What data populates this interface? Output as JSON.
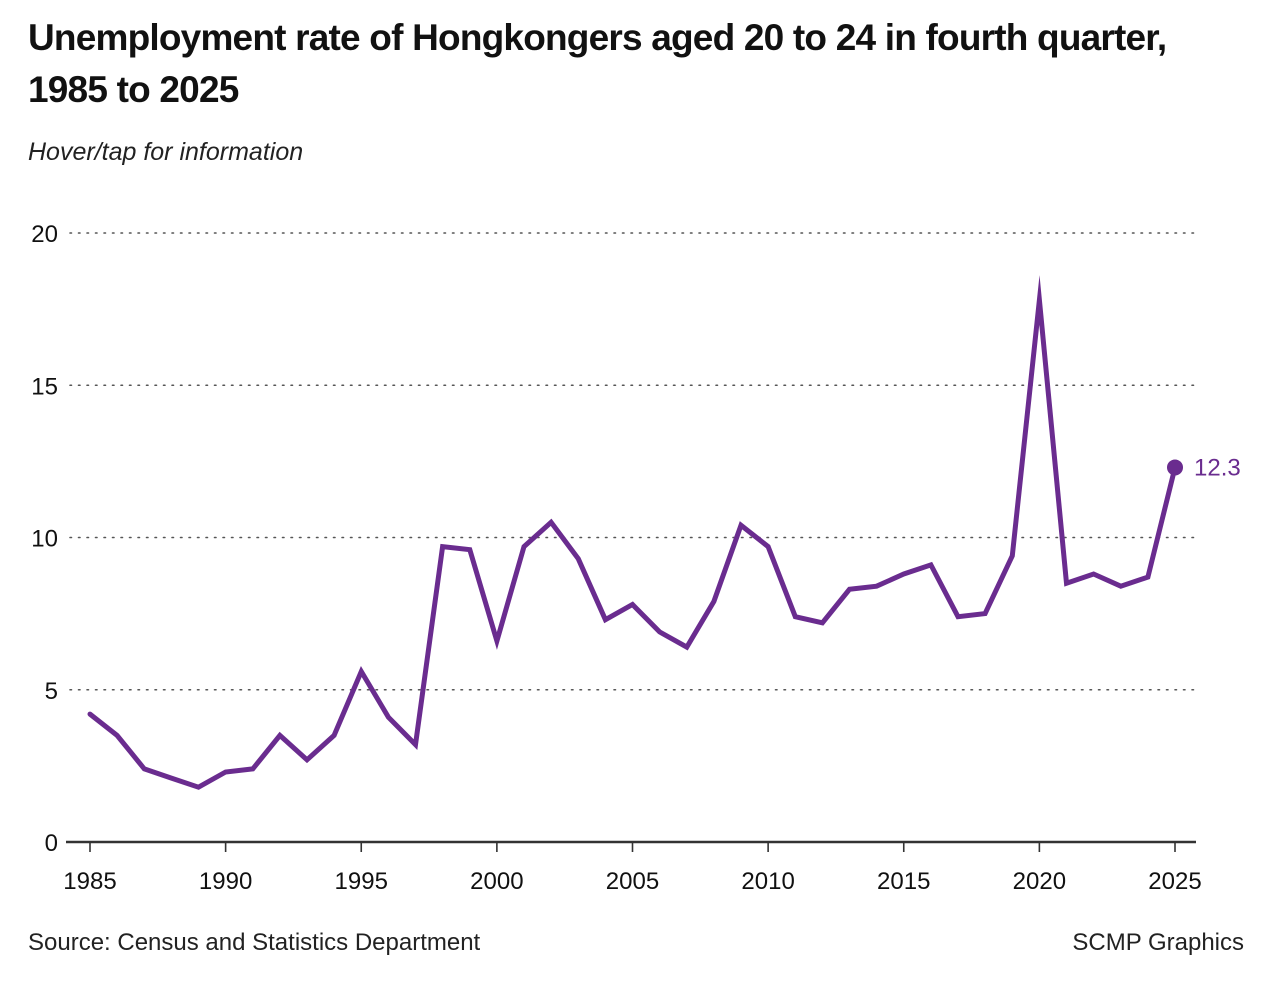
{
  "header": {
    "title": "Unemployment rate of Hongkongers aged 20 to 24 in fourth quarter, 1985 to 2025",
    "subtitle": "Hover/tap for information"
  },
  "footer": {
    "source": "Source: Census and Statistics Department",
    "credit": "SCMP Graphics"
  },
  "colors": {
    "line": "#6a2c8f",
    "grid": "#555555",
    "axis": "#333333"
  },
  "chart_data": {
    "type": "line",
    "title": "Unemployment rate of Hongkongers aged 20 to 24 in fourth quarter, 1985 to 2025",
    "xlabel": "",
    "ylabel": "",
    "xlim": [
      1985,
      2025
    ],
    "ylim": [
      0,
      20
    ],
    "grid": true,
    "x_ticks": [
      "1985",
      "1990",
      "1995",
      "2000",
      "2005",
      "2010",
      "2015",
      "2020",
      "2025"
    ],
    "x_tick_values": [
      1985,
      1990,
      1995,
      2000,
      2005,
      2010,
      2015,
      2020,
      2025
    ],
    "y_ticks": [
      "0",
      "5",
      "10",
      "15",
      "20"
    ],
    "y_tick_values": [
      0,
      5,
      10,
      15,
      20
    ],
    "series": [
      {
        "name": "Unemployment rate (20-24)",
        "x": [
          1985,
          1986,
          1987,
          1988,
          1989,
          1990,
          1991,
          1992,
          1993,
          1994,
          1995,
          1996,
          1997,
          1998,
          1999,
          2000,
          2001,
          2002,
          2003,
          2004,
          2005,
          2006,
          2007,
          2008,
          2009,
          2010,
          2011,
          2012,
          2013,
          2014,
          2015,
          2016,
          2017,
          2018,
          2019,
          2020,
          2021,
          2022,
          2023,
          2024,
          2025
        ],
        "values": [
          4.2,
          3.5,
          2.4,
          2.1,
          1.8,
          2.3,
          2.4,
          3.5,
          2.7,
          3.5,
          5.6,
          4.1,
          3.2,
          9.7,
          9.6,
          6.6,
          9.7,
          10.5,
          9.3,
          7.3,
          7.8,
          6.9,
          6.4,
          7.9,
          10.4,
          9.7,
          7.4,
          7.2,
          8.3,
          8.4,
          8.8,
          9.1,
          7.4,
          7.5,
          9.4,
          17.8,
          8.5,
          8.8,
          8.4,
          8.7,
          12.3
        ]
      }
    ],
    "annotations": [
      {
        "x": 2025,
        "y": 12.3,
        "label": "12.3"
      }
    ]
  }
}
